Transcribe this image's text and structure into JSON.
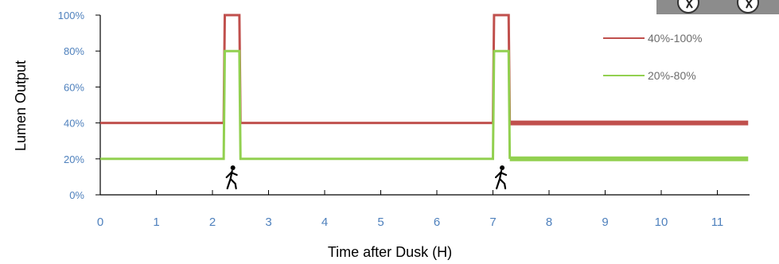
{
  "chart_data": {
    "type": "line",
    "xlabel": "Time after Dusk (H)",
    "ylabel": "Lumen Output",
    "x_ticks": [
      "0",
      "1",
      "2",
      "3",
      "4",
      "5",
      "6",
      "7",
      "8",
      "9",
      "10",
      "11"
    ],
    "y_ticks": [
      "0%",
      "20%",
      "40%",
      "60%",
      "80%",
      "100%"
    ],
    "xlim": [
      0,
      11.55
    ],
    "ylim": [
      0,
      100
    ],
    "grid": false,
    "legend_position": "top-right",
    "series": [
      {
        "name": "40%-100%",
        "color": "#c0504d",
        "x": [
          0,
          2.2,
          2.22,
          2.48,
          2.5,
          7.0,
          7.02,
          7.28,
          7.3,
          11.55
        ],
        "y": [
          40,
          40,
          100,
          100,
          40,
          40,
          100,
          100,
          40,
          40
        ]
      },
      {
        "name": "20%-80%",
        "color": "#92d050",
        "x": [
          0,
          2.2,
          2.22,
          2.48,
          2.5,
          7.0,
          7.02,
          7.28,
          7.3,
          11.55
        ],
        "y": [
          20,
          20,
          80,
          80,
          20,
          20,
          80,
          80,
          20,
          20
        ]
      }
    ],
    "annotations": [
      {
        "type": "pedestrian-icon",
        "x": 2.35
      },
      {
        "type": "pedestrian-icon",
        "x": 7.15
      }
    ]
  },
  "corner_badges": [
    "motion-sensor-icon",
    "motion-sensor-icon"
  ]
}
